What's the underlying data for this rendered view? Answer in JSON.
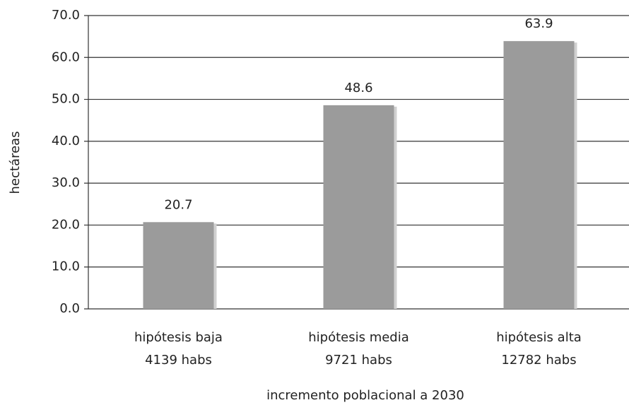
{
  "chart_data": {
    "type": "bar",
    "categories": [
      "hipótesis baja\n4139 habs",
      "hipótesis media\n9721 habs",
      "hipótesis alta\n12782 habs"
    ],
    "values": [
      20.7,
      48.6,
      63.9
    ],
    "color": "#9b9b9b",
    "ylabel": "hectáreas",
    "xlabel": "incremento poblacional a 2030",
    "ylim": [
      0,
      70
    ],
    "yticks": [
      {
        "value": 0,
        "label": "0.0"
      },
      {
        "value": 10,
        "label": "10.0"
      },
      {
        "value": 20,
        "label": "20.0"
      },
      {
        "value": 30,
        "label": "30.0"
      },
      {
        "value": 40,
        "label": "40.0"
      },
      {
        "value": 50,
        "label": "50.0"
      },
      {
        "value": 60,
        "label": "60.0"
      },
      {
        "value": 70,
        "label": "70.0"
      }
    ],
    "grid": true
  }
}
